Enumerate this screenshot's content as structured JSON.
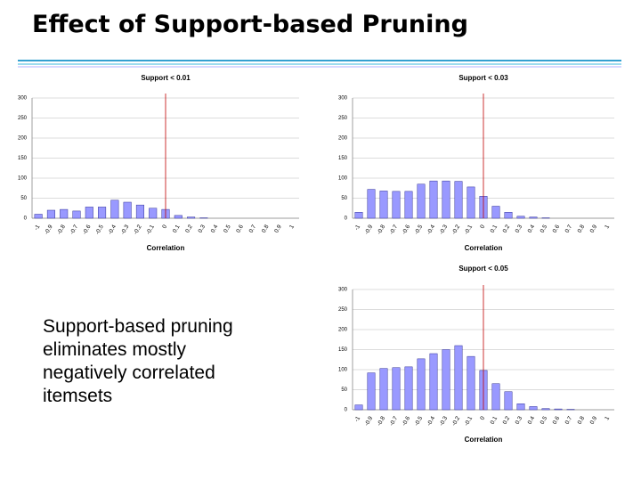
{
  "title": "Effect of Support-based Pruning",
  "body_lines": [
    "Support-based pruning",
    "eliminates mostly",
    "negatively correlated",
    "itemsets"
  ],
  "chart_data": [
    {
      "type": "bar",
      "title": "Support < 0.01",
      "x_label": "Correlation",
      "categories": [
        "-1",
        "-0.9",
        "-0.8",
        "-0.7",
        "-0.6",
        "-0.5",
        "-0.4",
        "-0.3",
        "-0.2",
        "-0.1",
        "0",
        "0.1",
        "0.2",
        "0.3",
        "0.4",
        "0.5",
        "0.6",
        "0.7",
        "0.8",
        "0.9",
        "1"
      ],
      "values": [
        10,
        20,
        22,
        18,
        28,
        28,
        45,
        40,
        33,
        25,
        22,
        7,
        3,
        1,
        0,
        0,
        0,
        0,
        0,
        0,
        0
      ],
      "color": "#9999ff",
      "edge_color": "#333399",
      "vline": 0,
      "vline_color": "#c00000",
      "ylim": [
        0,
        300
      ],
      "yticks": [
        0,
        50,
        100,
        150,
        200,
        250,
        300
      ],
      "grid": true
    },
    {
      "type": "bar",
      "title": "Support < 0.03",
      "x_label": "Correlation",
      "categories": [
        "-1",
        "-0.9",
        "-0.8",
        "-0.7",
        "-0.6",
        "-0.5",
        "-0.4",
        "-0.3",
        "-0.2",
        "-0.1",
        "0",
        "0.1",
        "0.2",
        "0.3",
        "0.4",
        "0.5",
        "0.6",
        "0.7",
        "0.8",
        "0.9",
        "1"
      ],
      "values": [
        15,
        72,
        68,
        67,
        67,
        85,
        93,
        93,
        92,
        78,
        55,
        30,
        15,
        5,
        3,
        1,
        0,
        0,
        0,
        0,
        0
      ],
      "color": "#9999ff",
      "edge_color": "#333399",
      "vline": 0,
      "vline_color": "#c00000",
      "ylim": [
        0,
        300
      ],
      "yticks": [
        0,
        50,
        100,
        150,
        200,
        250,
        300
      ],
      "grid": true
    },
    {
      "type": "bar",
      "title": "Support < 0.05",
      "x_label": "Correlation",
      "categories": [
        "-1",
        "-0.9",
        "-0.8",
        "-0.7",
        "-0.6",
        "-0.5",
        "-0.4",
        "-0.3",
        "-0.2",
        "-0.1",
        "0",
        "0.1",
        "0.2",
        "0.3",
        "0.4",
        "0.5",
        "0.6",
        "0.7",
        "0.8",
        "0.9",
        "1"
      ],
      "values": [
        12,
        92,
        103,
        105,
        107,
        127,
        140,
        150,
        160,
        133,
        98,
        65,
        45,
        15,
        8,
        3,
        2,
        1,
        0,
        0,
        0
      ],
      "color": "#9999ff",
      "edge_color": "#333399",
      "vline": 0,
      "vline_color": "#c00000",
      "ylim": [
        0,
        300
      ],
      "yticks": [
        0,
        50,
        100,
        150,
        200,
        250,
        300
      ],
      "grid": true
    }
  ]
}
